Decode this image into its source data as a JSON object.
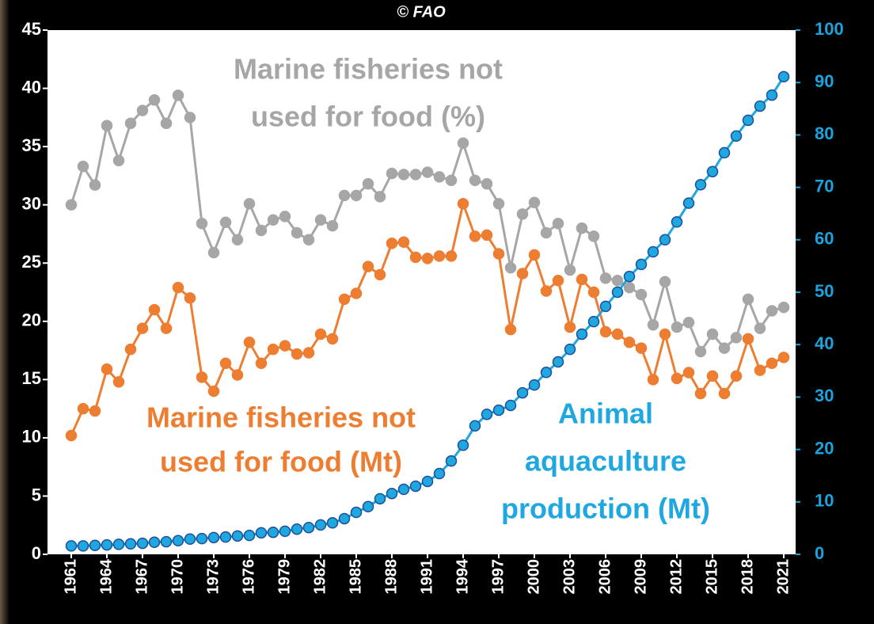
{
  "chart_data": {
    "type": "line",
    "source": "© FAO",
    "x": [
      1961,
      1962,
      1963,
      1964,
      1965,
      1966,
      1967,
      1968,
      1969,
      1970,
      1971,
      1972,
      1973,
      1974,
      1975,
      1976,
      1977,
      1978,
      1979,
      1980,
      1981,
      1982,
      1983,
      1984,
      1985,
      1986,
      1987,
      1988,
      1989,
      1990,
      1991,
      1992,
      1993,
      1994,
      1995,
      1996,
      1997,
      1998,
      1999,
      2000,
      2001,
      2002,
      2003,
      2004,
      2005,
      2006,
      2007,
      2008,
      2009,
      2010,
      2011,
      2012,
      2013,
      2014,
      2015,
      2016,
      2017,
      2018,
      2019,
      2020,
      2021
    ],
    "xlim": [
      1959,
      2022
    ],
    "xticks": [
      1961,
      1964,
      1967,
      1970,
      1973,
      1976,
      1979,
      1982,
      1985,
      1988,
      1991,
      1994,
      1997,
      2000,
      2003,
      2006,
      2009,
      2012,
      2015,
      2018,
      2021
    ],
    "ylim": [
      0,
      45
    ],
    "yticks": [
      0,
      5,
      10,
      15,
      20,
      25,
      30,
      35,
      40,
      45
    ],
    "y2lim": [
      0,
      100
    ],
    "y2ticks": [
      0,
      10,
      20,
      30,
      40,
      50,
      60,
      70,
      80,
      90,
      100
    ],
    "y2color": "#1aa3dc",
    "series": [
      {
        "label_lines": [
          "Marine fisheries not",
          "used for food (%)"
        ],
        "color": "#a6a6a6",
        "marker_stroke": "#a6a6a6",
        "values": [
          30.0,
          33.3,
          31.7,
          36.8,
          33.8,
          37.0,
          38.1,
          39.0,
          37.0,
          39.4,
          37.5,
          28.4,
          25.9,
          28.5,
          27.0,
          30.1,
          27.8,
          28.7,
          29.0,
          27.6,
          27.0,
          28.7,
          28.2,
          30.8,
          30.8,
          31.8,
          30.7,
          32.7,
          32.6,
          32.6,
          32.8,
          32.4,
          32.1,
          35.3,
          32.1,
          31.8,
          30.1,
          24.6,
          29.2,
          30.2,
          27.6,
          28.4,
          24.4,
          28.0,
          27.3,
          23.7,
          23.5,
          22.9,
          22.3,
          19.7,
          23.4,
          19.5,
          19.9,
          17.4,
          18.9,
          17.7,
          18.6,
          21.9,
          19.4,
          20.9,
          21.2
        ]
      },
      {
        "label_lines": [
          "Marine fisheries not",
          "used for food (Mt)"
        ],
        "color": "#ed7d31",
        "marker_stroke": "#ed7d31",
        "values": [
          10.2,
          12.5,
          12.3,
          15.9,
          14.8,
          17.6,
          19.4,
          21.0,
          19.4,
          22.9,
          22.0,
          15.2,
          14.0,
          16.4,
          15.4,
          18.2,
          16.4,
          17.6,
          17.9,
          17.2,
          17.3,
          18.9,
          18.5,
          21.9,
          22.4,
          24.7,
          24.0,
          26.7,
          26.8,
          25.5,
          25.4,
          25.6,
          25.6,
          30.1,
          27.3,
          27.4,
          25.8,
          19.3,
          24.1,
          25.7,
          22.6,
          23.5,
          19.5,
          23.6,
          22.5,
          19.1,
          18.9,
          18.2,
          17.7,
          15.0,
          18.9,
          15.1,
          15.6,
          13.8,
          15.3,
          13.8,
          15.3,
          18.5,
          15.8,
          16.4,
          16.9
        ]
      },
      {
        "label_lines": [
          "Animal",
          "aquaculture",
          "production (Mt)"
        ],
        "color": "#1fa7e0",
        "marker_stroke": "#1f4e9a",
        "axis": "y2",
        "values": [
          1.6,
          1.6,
          1.7,
          1.8,
          1.9,
          2.0,
          2.1,
          2.3,
          2.4,
          2.6,
          2.9,
          3.0,
          3.2,
          3.3,
          3.5,
          3.6,
          4.1,
          4.2,
          4.4,
          4.8,
          5.1,
          5.6,
          6.0,
          6.8,
          8.0,
          9.1,
          10.6,
          11.6,
          12.4,
          13.0,
          13.9,
          15.4,
          17.8,
          20.8,
          24.5,
          26.7,
          27.5,
          28.4,
          30.8,
          32.3,
          34.7,
          36.7,
          39.1,
          42.0,
          44.4,
          47.3,
          50.0,
          53.0,
          55.3,
          57.7,
          60.0,
          63.4,
          67.0,
          70.5,
          73.0,
          76.6,
          79.8,
          82.8,
          85.5,
          87.6,
          91.1
        ]
      }
    ]
  }
}
